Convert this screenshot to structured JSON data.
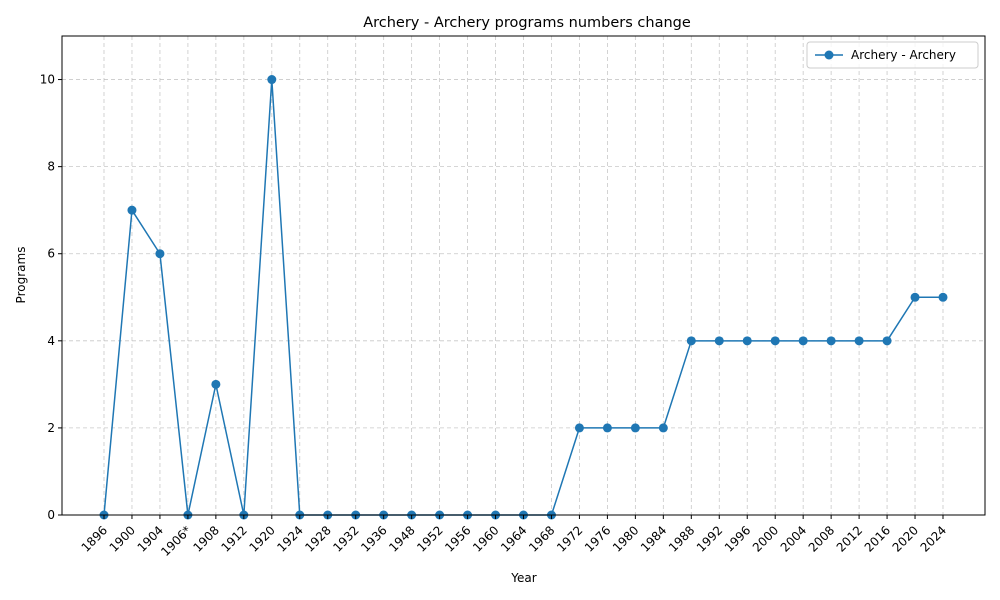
{
  "chart_data": {
    "type": "line",
    "title": "Archery - Archery programs numbers change",
    "xlabel": "Year",
    "ylabel": "Programs",
    "categories": [
      "1896",
      "1900",
      "1904",
      "1906*",
      "1908",
      "1912",
      "1920",
      "1924",
      "1928",
      "1932",
      "1936",
      "1948",
      "1952",
      "1956",
      "1960",
      "1964",
      "1968",
      "1972",
      "1976",
      "1980",
      "1984",
      "1988",
      "1992",
      "1996",
      "2000",
      "2004",
      "2008",
      "2012",
      "2016",
      "2020",
      "2024"
    ],
    "series": [
      {
        "name": "Archery - Archery",
        "values": [
          0,
          7,
          6,
          0,
          3,
          0,
          10,
          0,
          0,
          0,
          0,
          0,
          0,
          0,
          0,
          0,
          0,
          2,
          2,
          2,
          2,
          4,
          4,
          4,
          4,
          4,
          4,
          4,
          4,
          5,
          5
        ],
        "color": "#1f77b4",
        "marker": "circle"
      }
    ],
    "ylim": [
      0,
      11
    ],
    "yticks": [
      0,
      2,
      4,
      6,
      8,
      10
    ],
    "grid": true,
    "legend_position": "top-right",
    "xtick_rotation": "45 degrees"
  }
}
